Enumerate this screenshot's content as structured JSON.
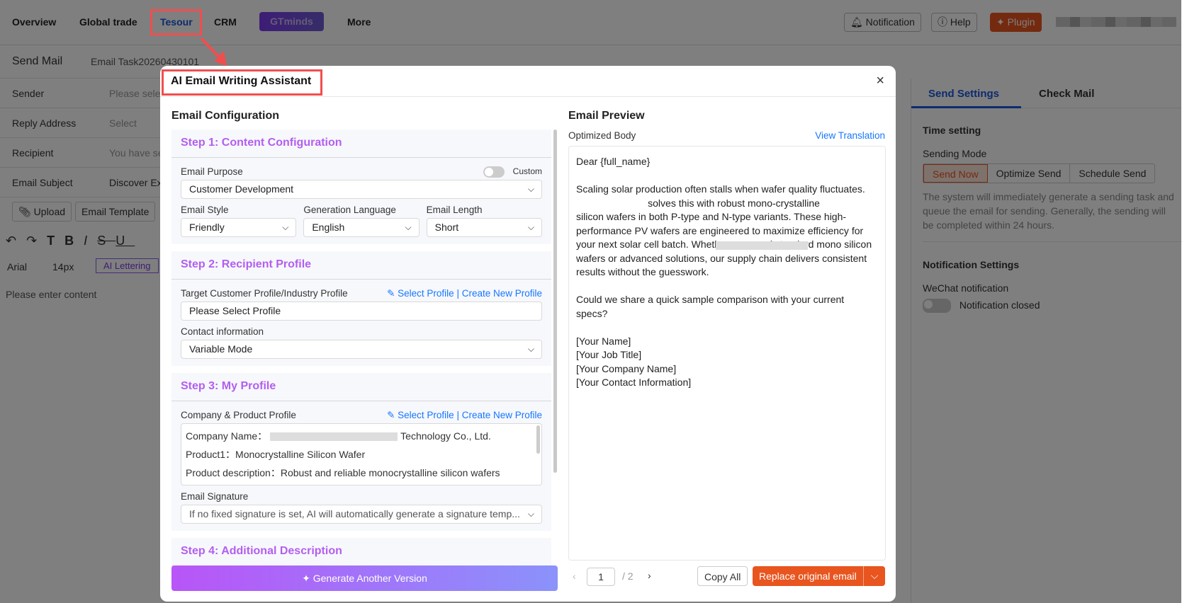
{
  "nav": {
    "items": [
      "Overview",
      "Global trade",
      "Tesour",
      "CRM",
      "More"
    ],
    "gtminds": "GTminds",
    "notification": "Notification",
    "help": "Help",
    "plugin": "Plugin"
  },
  "compose": {
    "title": "Send Mail",
    "task": "Email Task20260430101",
    "rows": [
      {
        "label": "Sender",
        "value": "Please sele"
      },
      {
        "label": "Reply Address",
        "value": "Select"
      },
      {
        "label": "Recipient",
        "value": "You have se"
      },
      {
        "label": "Email Subject",
        "value": "Discover Ex"
      }
    ],
    "upload": "Upload",
    "template": "Email Template",
    "font": "Arial",
    "size": "14px",
    "ai_lettering": "AI Lettering",
    "placeholder": "Please enter content"
  },
  "settings": {
    "tabs": [
      "Send Settings",
      "Check Mail"
    ],
    "time_setting": "Time setting",
    "sending_mode": "Sending Mode",
    "modes": [
      "Send Now",
      "Optimize Send",
      "Schedule Send"
    ],
    "description": "The system will immediately generate a sending task and queue the email for sending. Generally, the sending will be completed within 24 hours.",
    "notification_settings": "Notification Settings",
    "wechat": "WeChat notification",
    "notif_state": "Notification closed"
  },
  "modal": {
    "title": "AI Email Writing Assistant",
    "config_title": "Email Configuration",
    "step1": {
      "title": "Step 1: Content Configuration",
      "purpose_label": "Email Purpose",
      "custom": "Custom",
      "purpose": "Customer Development",
      "style_label": "Email Style",
      "style": "Friendly",
      "lang_label": "Generation Language",
      "lang": "English",
      "length_label": "Email Length",
      "length": "Short"
    },
    "step2": {
      "title": "Step 2: Recipient Profile",
      "profile_label": "Target Customer Profile/Industry Profile",
      "link": "Select Profile | Create New Profile",
      "profile": "Please Select Profile",
      "contact_label": "Contact information",
      "contact": "Variable Mode"
    },
    "step3": {
      "title": "Step 3: My Profile",
      "profile_label": "Company & Product Profile",
      "link": "Select Profile | Create New Profile",
      "lines": [
        "Company Name：",
        "Product1：Monocrystalline Silicon Wafer",
        "Product description：Robust and reliable monocrystalline silicon wafers"
      ],
      "company_suffix": "Technology Co., Ltd.",
      "signature_label": "Email Signature",
      "signature": "If no fixed signature is set, AI will automatically generate a signature temp..."
    },
    "step4": {
      "title": "Step 4: Additional Description"
    },
    "generate": "Generate Another Version",
    "preview_title": "Email Preview",
    "optimized_body": "Optimized Body",
    "view_translation": "View Translation",
    "body": "Dear {full_name}\n\nScaling solar production often stalls when wafer quality fluctuates.\n                          solves this with robust mono-crystalline\nsilicon wafers in both P-type and N-type variants. These high-\nperformance PV wafers are engineered to maximize efficiency for\nyour next solar cell batch. Whether you need standard mono silicon\nwafers or advanced solutions, our supply chain delivers consistent\nresults without the guesswork.\n\nCould we share a quick sample comparison with your current\nspecs?\n\n[Your Name]\n[Your Job Title]\n[Your Company Name]\n[Your Contact Information]",
    "page": "1",
    "total": "/  2",
    "copy_all": "Copy All",
    "replace": "Replace original email"
  },
  "colors": {
    "accent": "#1677ff",
    "step": "#b35ef0",
    "orange": "#e8551f",
    "highlight": "#f04e4e"
  }
}
